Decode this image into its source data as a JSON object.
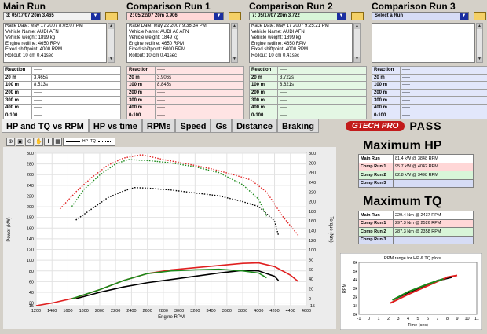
{
  "runs": [
    {
      "title": "Main Run",
      "selector": "3:  05/17/07 20m  3.465",
      "color": "#f2f2f2",
      "row": "#ffffff",
      "info": [
        "Race Date: May 17 2007   8:05:07 PM",
        "Vehicle Name: AUDI AFN",
        "Vehicle weight: 1899 kg",
        "Engine redline: 4650 RPM",
        "Fixed shiftpoint: 4000 RPM",
        "Rollout: 10 cm  0.41sec"
      ],
      "rows": [
        [
          "Reaction",
          "-----"
        ],
        [
          "20 m",
          "3.465s"
        ],
        [
          "100 m",
          "8.513s"
        ],
        [
          "200 m",
          "-----"
        ],
        [
          "300 m",
          "-----"
        ],
        [
          "400 m",
          "-----"
        ],
        [
          "0-100",
          "-----"
        ]
      ]
    },
    {
      "title": "Comparison Run 1",
      "selector": "2:  05/22/07 20m  3.906",
      "color": "#ffd7d7",
      "row": "#ffe4e4",
      "info": [
        "Race Date: May 22 2007   9:36:34 PM",
        "Vehicle Name: AUDI A6 AFN",
        "Vehicle weight: 1849 kg",
        "Engine redline: 4650 RPM",
        "Fixed shiftpoint: 6000 RPM",
        "Rollout: 10 cm  0.41sec"
      ],
      "rows": [
        [
          "Reaction",
          "-----"
        ],
        [
          "20 m",
          "3.906s"
        ],
        [
          "100 m",
          "8.845s"
        ],
        [
          "200 m",
          "-----"
        ],
        [
          "300 m",
          "-----"
        ],
        [
          "400 m",
          "-----"
        ],
        [
          "0-100",
          "-----"
        ]
      ]
    },
    {
      "title": "Comparison Run 2",
      "selector": "7:  05/17/07 20m  3.722",
      "color": "#d8f5d8",
      "row": "#e4f7e4",
      "info": [
        "Race Date: May 17 2007   9:25:21 PM",
        "Vehicle Name: AUDI AFN",
        "Vehicle weight: 1899 kg",
        "Engine redline: 4650 RPM",
        "Fixed shiftpoint: 4000 RPM",
        "Rollout: 10 cm  0.41sec"
      ],
      "rows": [
        [
          "Reaction",
          "-----"
        ],
        [
          "20 m",
          "3.722s"
        ],
        [
          "100 m",
          "8.621s"
        ],
        [
          "200 m",
          "-----"
        ],
        [
          "300 m",
          "-----"
        ],
        [
          "400 m",
          "-----"
        ],
        [
          "0-100",
          "-----"
        ]
      ]
    },
    {
      "title": "Comparison Run 3",
      "selector": "Select a Run",
      "color": "#d6dcf5",
      "row": "#e2e7fb",
      "info": [
        "",
        "",
        "",
        "",
        "",
        ""
      ],
      "rows": [
        [
          "Reaction",
          "-----"
        ],
        [
          "20 m",
          "-----"
        ],
        [
          "100 m",
          "-----"
        ],
        [
          "200 m",
          "-----"
        ],
        [
          "300 m",
          "-----"
        ],
        [
          "400 m",
          "-----"
        ],
        [
          "0-100",
          "-----"
        ]
      ]
    }
  ],
  "tabs": [
    "HP and TQ vs RPM",
    "HP vs time",
    "RPMs",
    "Speed",
    "Gs",
    "Distance",
    "Braking"
  ],
  "logo": {
    "brand": "GTECH PRO",
    "product": "PASS"
  },
  "toolbar": {
    "legend_hp": "HP",
    "legend_tq": "TQ"
  },
  "max_hp": {
    "title": "Maximum HP",
    "rows": [
      [
        "Main Run",
        "81.4 kW @ 3848 RPM"
      ],
      [
        "Comp Run 1",
        "95.7 kW @ 4042 RPM"
      ],
      [
        "Comp Run 2",
        "82.8 kW @ 3498 RPM"
      ],
      [
        "Comp Run 3",
        ""
      ]
    ]
  },
  "max_tq": {
    "title": "Maximum TQ",
    "rows": [
      [
        "Main Run",
        "229.4 Nm @ 2437 RPM"
      ],
      [
        "Comp Run 1",
        "297.3 Nm @ 2526 RPM"
      ],
      [
        "Comp Run 2",
        "287.3 Nm @ 2358 RPM"
      ],
      [
        "Comp Run 3",
        ""
      ]
    ]
  },
  "colors": {
    "main": "#000000",
    "comp1": "#e02020",
    "comp2": "#1a8a1a",
    "comp3": "#2030c0"
  },
  "chart_data": [
    {
      "type": "line",
      "xlabel": "Engine RPM",
      "ylabel": "Power (kW)",
      "y2label": "Torque (Nm)",
      "xlim": [
        1200,
        4600
      ],
      "xticks": [
        1200,
        1400,
        1600,
        1800,
        2000,
        2200,
        2400,
        2600,
        2800,
        3000,
        3200,
        3400,
        3600,
        3800,
        4000,
        4200,
        4400,
        4600
      ],
      "yticks": [
        15,
        20,
        40,
        60,
        80,
        100,
        120,
        140,
        160,
        180,
        200,
        220,
        240,
        260,
        280,
        300
      ],
      "ylim": [
        15,
        300
      ],
      "y2ticks": [
        -15,
        0,
        20,
        40,
        60,
        80,
        100,
        120,
        140,
        160,
        180,
        200,
        220,
        240,
        260,
        280,
        300
      ],
      "y2lim": [
        -15,
        300
      ],
      "series": [
        {
          "run": "main",
          "kind": "hp",
          "x": [
            1700,
            2000,
            2300,
            2600,
            2900,
            3200,
            3500,
            3800,
            4000,
            4200,
            4250
          ],
          "y": [
            28,
            40,
            50,
            58,
            64,
            70,
            76,
            81,
            80,
            70,
            62
          ]
        },
        {
          "run": "comp1",
          "kind": "hp",
          "x": [
            1200,
            1400,
            1700,
            2000,
            2300,
            2600,
            2900,
            3200,
            3500,
            3800,
            4000,
            4200,
            4400,
            4500
          ],
          "y": [
            15,
            20,
            30,
            45,
            62,
            75,
            82,
            86,
            90,
            94,
            95,
            88,
            72,
            60
          ]
        },
        {
          "run": "comp2",
          "kind": "hp",
          "x": [
            1650,
            2000,
            2300,
            2600,
            2900,
            3200,
            3500,
            3800,
            4000,
            4100
          ],
          "y": [
            28,
            45,
            62,
            75,
            80,
            82,
            83,
            80,
            76,
            67
          ]
        },
        {
          "run": "main",
          "kind": "tq",
          "x": [
            1700,
            1900,
            2100,
            2300,
            2437,
            2600,
            2900,
            3200,
            3500,
            3800,
            4000,
            4200,
            4250
          ],
          "y": [
            162,
            185,
            208,
            222,
            229,
            228,
            224,
            218,
            212,
            200,
            190,
            160,
            130
          ]
        },
        {
          "run": "comp1",
          "kind": "tq",
          "x": [
            1500,
            1700,
            1900,
            2100,
            2300,
            2526,
            2800,
            3100,
            3400,
            3700,
            3900,
            4100,
            4300,
            4500
          ],
          "y": [
            185,
            220,
            250,
            275,
            290,
            297,
            287,
            278,
            268,
            255,
            245,
            220,
            170,
            130
          ]
        },
        {
          "run": "comp2",
          "kind": "tq",
          "x": [
            1650,
            1800,
            2000,
            2200,
            2358,
            2600,
            2900,
            3200,
            3500,
            3800,
            4000,
            4100
          ],
          "y": [
            190,
            225,
            255,
            278,
            287,
            285,
            280,
            272,
            260,
            235,
            205,
            170
          ]
        }
      ]
    },
    {
      "type": "line",
      "title": "RPM range for HP & TQ plots",
      "xlabel": "Time (sec)",
      "ylabel": "RPM",
      "xlim": [
        -1,
        11
      ],
      "xticks": [
        -1,
        0,
        1,
        2,
        3,
        4,
        5,
        6,
        7,
        8,
        9,
        10,
        11
      ],
      "ylim": [
        0,
        6000
      ],
      "yticks": [
        0,
        1000,
        2000,
        3000,
        4000,
        5000,
        6000
      ],
      "ytick_labels": [
        "0k",
        "1k",
        "2k",
        "3k",
        "4k",
        "5k",
        "6k"
      ],
      "series": [
        {
          "run": "main",
          "x": [
            2.5,
            4,
            5.5,
            7,
            8.5
          ],
          "y": [
            1700,
            2500,
            3200,
            3900,
            4300
          ]
        },
        {
          "run": "comp1",
          "x": [
            2.2,
            4,
            6,
            8,
            9
          ],
          "y": [
            1300,
            2300,
            3300,
            4300,
            4500
          ]
        },
        {
          "run": "comp2",
          "x": [
            2.4,
            4,
            6,
            7.6
          ],
          "y": [
            1650,
            2600,
            3500,
            4100
          ]
        }
      ]
    }
  ]
}
